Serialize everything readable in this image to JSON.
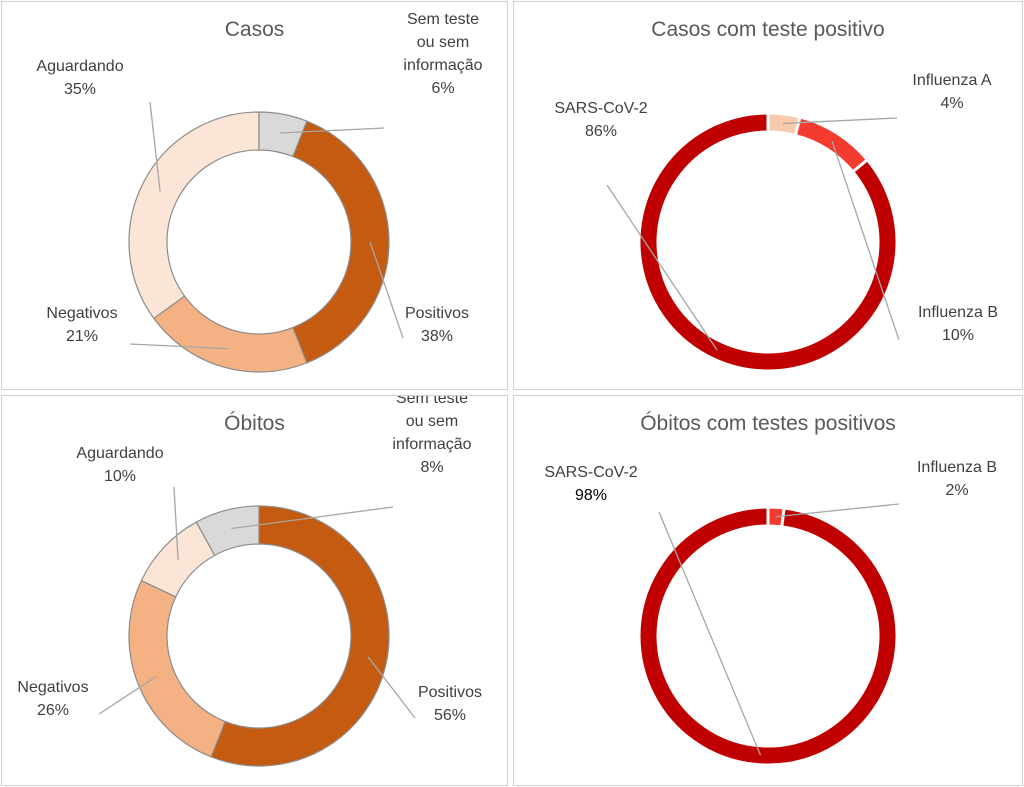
{
  "colors": {
    "positivos": "#c55a11",
    "negativos": "#f4b183",
    "aguardando": "#fbe5d6",
    "sem_teste": "#d9d9d9",
    "sars": "#c00000",
    "influenza_a": "#f8cbad",
    "influenza_b": "#f33b2f"
  },
  "chart_data": [
    {
      "type": "pie",
      "title": "Casos",
      "slices": [
        {
          "label": [
            "Positivos"
          ],
          "value": 38,
          "display": "38%",
          "color": "#c55a11"
        },
        {
          "label": [
            "Negativos"
          ],
          "value": 21,
          "display": "21%",
          "color": "#f4b183"
        },
        {
          "label": [
            "Aguardando"
          ],
          "value": 35,
          "display": "35%",
          "color": "#fbe5d6"
        },
        {
          "label": [
            "Sem teste",
            "ou sem",
            "informação"
          ],
          "value": 6,
          "display": "6%",
          "color": "#d9d9d9"
        }
      ]
    },
    {
      "type": "pie",
      "title": "Casos com teste positivo",
      "slices": [
        {
          "label": [
            "Influenza A"
          ],
          "value": 4,
          "display": "4%",
          "color": "#f8cbad"
        },
        {
          "label": [
            "Influenza B"
          ],
          "value": 10,
          "display": "10%",
          "color": "#f33b2f"
        },
        {
          "label": [
            "SARS-CoV-2"
          ],
          "value": 86,
          "display": "86%",
          "color": "#c00000"
        }
      ]
    },
    {
      "type": "pie",
      "title": "Óbitos",
      "slices": [
        {
          "label": [
            "Positivos"
          ],
          "value": 56,
          "display": "56%",
          "color": "#c55a11"
        },
        {
          "label": [
            "Negativos"
          ],
          "value": 26,
          "display": "26%",
          "color": "#f4b183"
        },
        {
          "label": [
            "Aguardando"
          ],
          "value": 10,
          "display": "10%",
          "color": "#fbe5d6"
        },
        {
          "label": [
            "Sem teste",
            "ou sem",
            "informação"
          ],
          "value": 8,
          "display": "8%",
          "color": "#d9d9d9"
        }
      ]
    },
    {
      "type": "pie",
      "title": "Óbitos com testes positivos",
      "slices": [
        {
          "label": [
            "Influenza B"
          ],
          "value": 2,
          "display": "2%",
          "color": "#f33b2f"
        },
        {
          "label": [
            "SARS-CoV-2"
          ],
          "value": 98,
          "display": "98%",
          "color": "#c00000"
        }
      ]
    }
  ]
}
